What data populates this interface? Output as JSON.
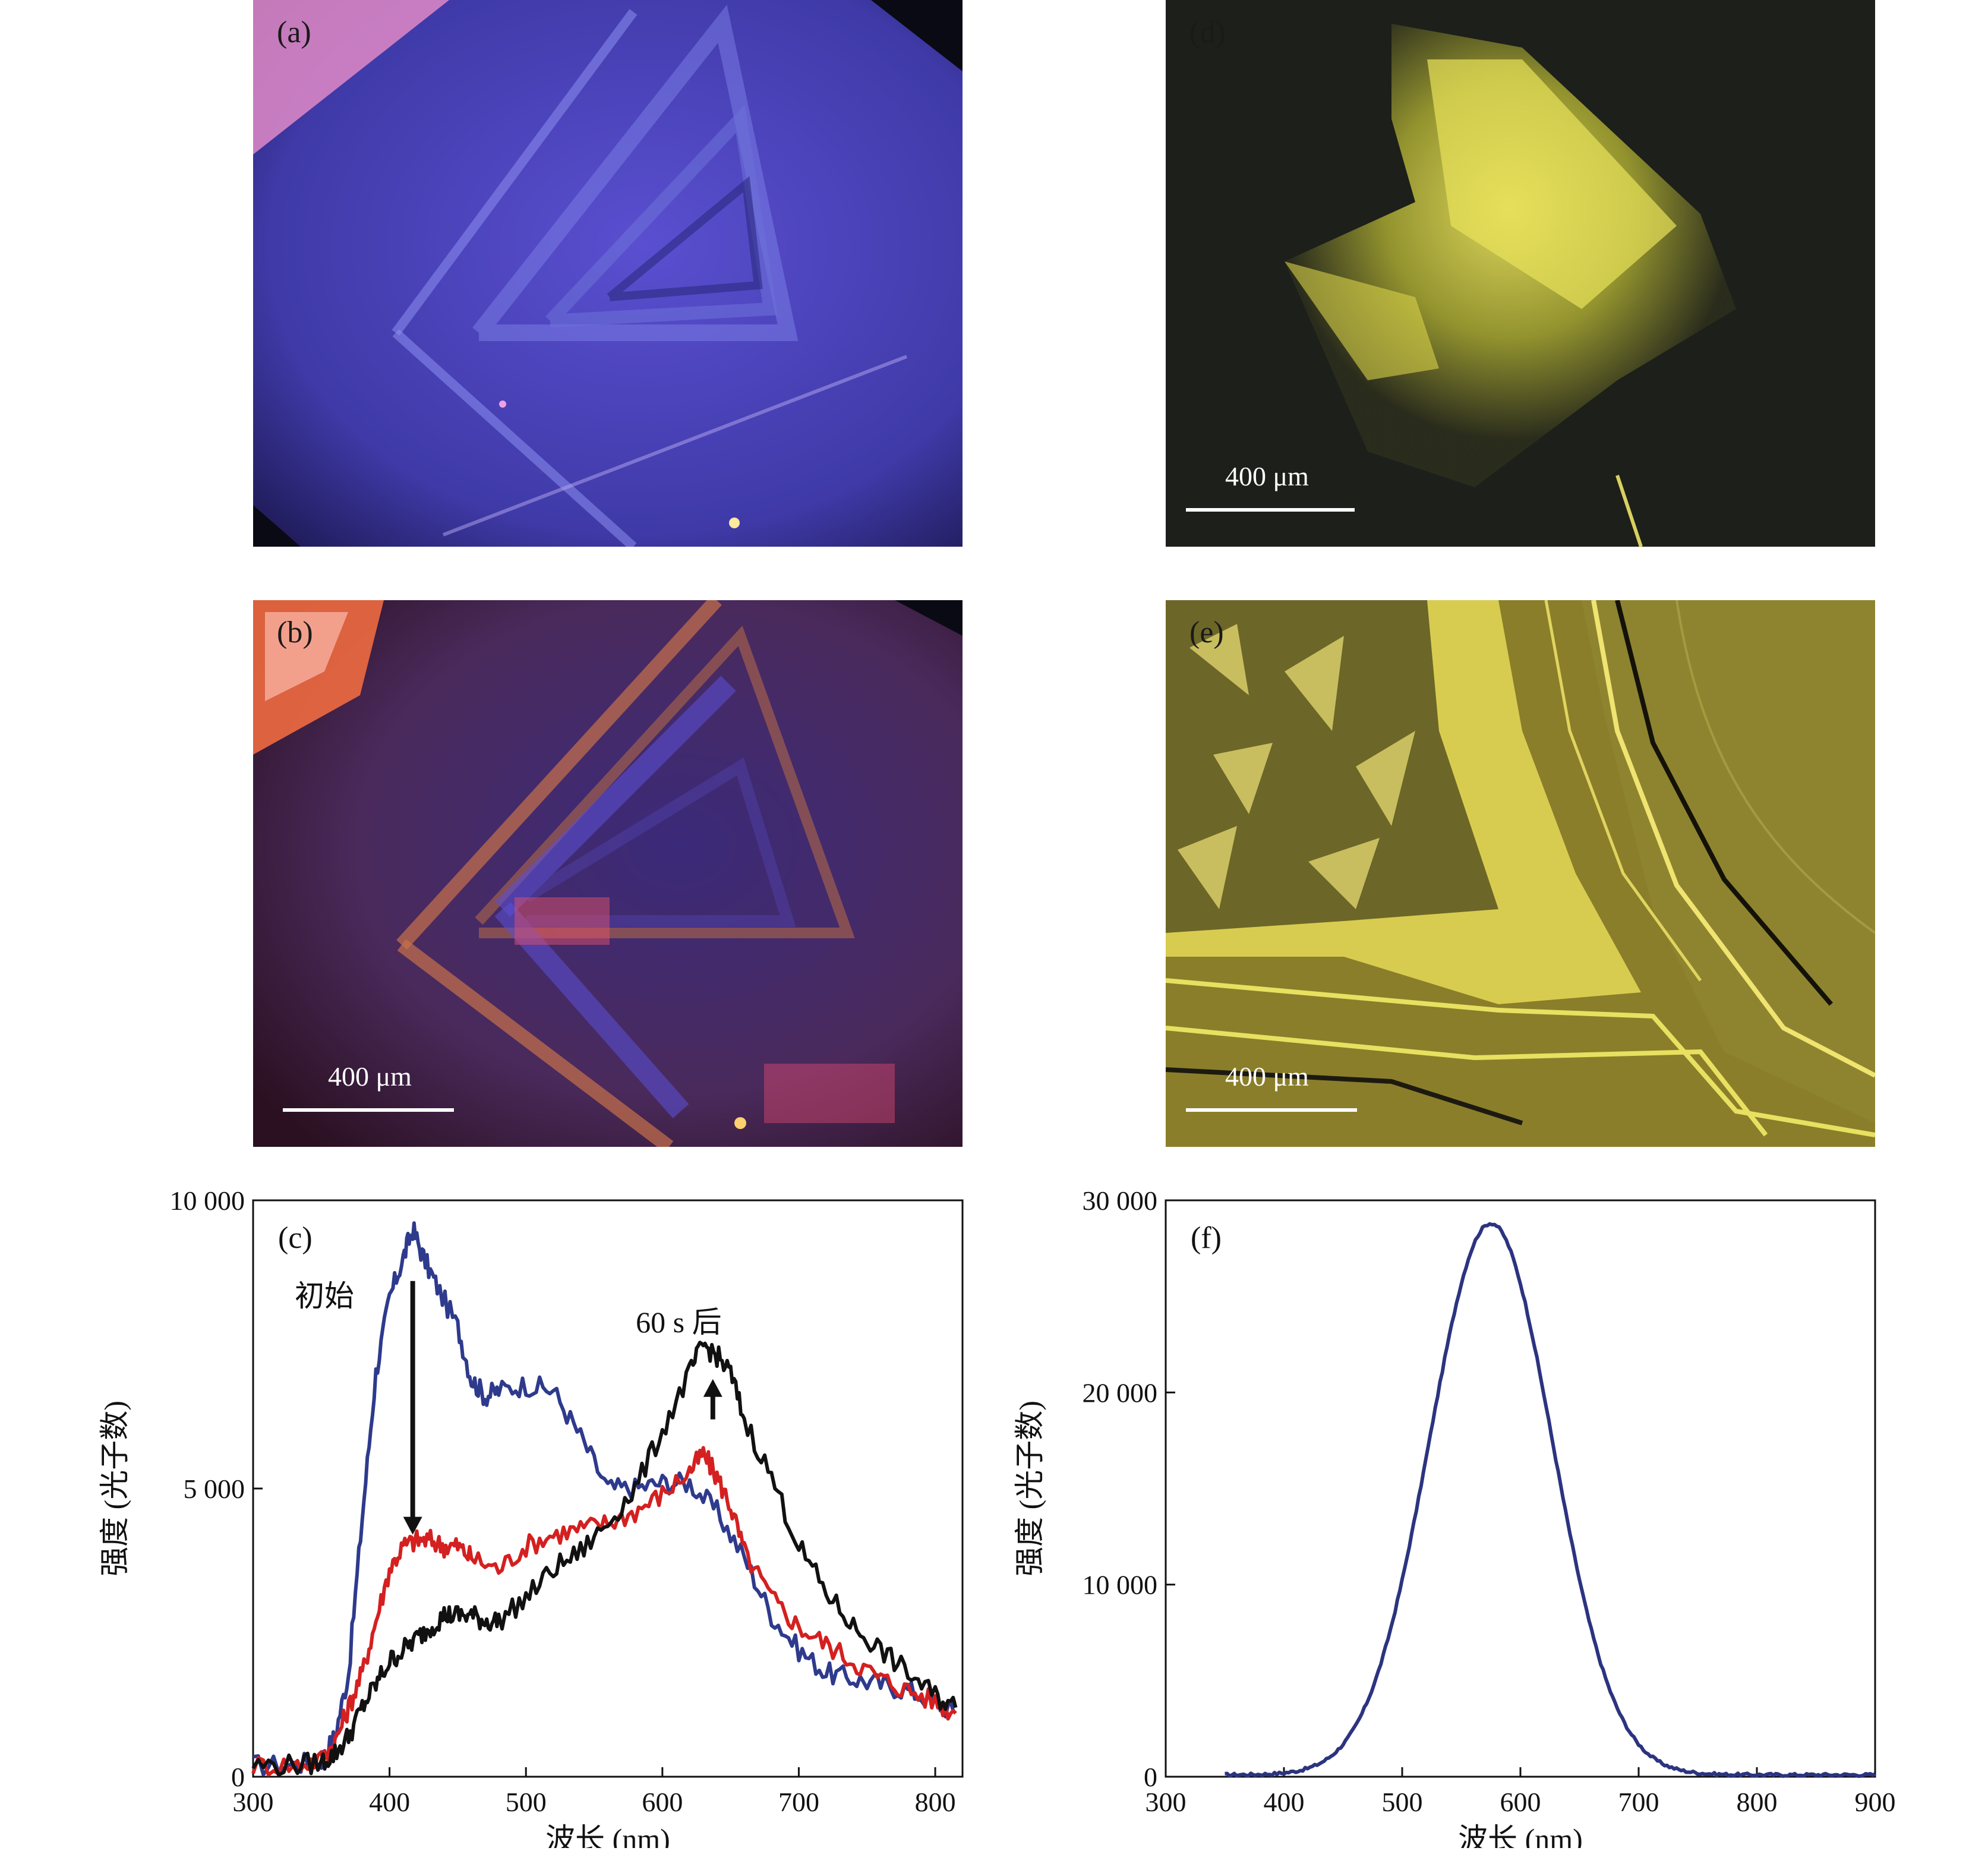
{
  "panels": {
    "a": {
      "label": "(a)"
    },
    "b": {
      "label": "(b)",
      "scale_bar": "400 μm"
    },
    "d": {
      "label": "(d)",
      "scale_bar": "400 μm"
    },
    "e": {
      "label": "(e)",
      "scale_bar": "400 μm"
    }
  },
  "colors": {
    "blue_series": "#2e3a8c",
    "red_series": "#d42020",
    "black_series": "#111111",
    "f_series": "#2c3480"
  },
  "chart_data": [
    {
      "type": "line",
      "panel_label": "(c)",
      "xlabel": "波长 (nm)",
      "ylabel": "强度 (光子数)",
      "xlim": [
        300,
        820
      ],
      "ylim": [
        0,
        10000
      ],
      "x_ticks": [
        300,
        400,
        500,
        600,
        700,
        800
      ],
      "x_tick_labels": [
        "300",
        "400",
        "500",
        "600",
        "700",
        "800"
      ],
      "y_ticks": [
        0,
        5000,
        10000
      ],
      "y_tick_labels": [
        "0",
        "5 000",
        "10 000"
      ],
      "annotations": {
        "initial": "初始",
        "after": "60 s 后"
      },
      "arrows": [
        {
          "x": 417,
          "y_from": 8600,
          "y_to": 4200,
          "direction": "down"
        },
        {
          "x": 637,
          "y_from": 6200,
          "y_to": 6900,
          "direction": "up"
        }
      ],
      "grid": false,
      "series": [
        {
          "color": "blue",
          "x": [
            300,
            330,
            350,
            360,
            370,
            380,
            390,
            400,
            410,
            417,
            425,
            435,
            450,
            460,
            470,
            480,
            500,
            520,
            540,
            560,
            580,
            600,
            620,
            640,
            660,
            680,
            700,
            720,
            740,
            760,
            780,
            800,
            815
          ],
          "y": [
            200,
            200,
            300,
            700,
            1800,
            4500,
            7000,
            8300,
            9000,
            9500,
            9000,
            8500,
            7800,
            6900,
            6600,
            6700,
            6800,
            6700,
            5900,
            5000,
            5000,
            5100,
            5100,
            4600,
            3800,
            2800,
            2200,
            1800,
            1700,
            1600,
            1500,
            1300,
            1100
          ]
        },
        {
          "color": "red",
          "x": [
            300,
            330,
            350,
            360,
            370,
            380,
            390,
            400,
            410,
            420,
            430,
            440,
            450,
            460,
            480,
            500,
            520,
            540,
            560,
            580,
            600,
            620,
            630,
            640,
            650,
            660,
            680,
            700,
            720,
            740,
            760,
            780,
            800,
            815
          ],
          "y": [
            200,
            200,
            300,
            600,
            1200,
            1800,
            2700,
            3600,
            4000,
            4100,
            4100,
            4000,
            4000,
            3800,
            3600,
            4000,
            4200,
            4300,
            4400,
            4600,
            4900,
            5300,
            5600,
            5200,
            4700,
            3900,
            3100,
            2600,
            2300,
            2000,
            1700,
            1500,
            1300,
            1100
          ]
        },
        {
          "color": "black",
          "x": [
            300,
            330,
            350,
            360,
            370,
            380,
            390,
            400,
            410,
            420,
            430,
            440,
            450,
            460,
            470,
            480,
            500,
            520,
            540,
            560,
            580,
            600,
            620,
            630,
            640,
            650,
            660,
            680,
            700,
            720,
            740,
            760,
            780,
            800,
            815
          ],
          "y": [
            200,
            200,
            250,
            400,
            700,
            1200,
            1600,
            2000,
            2200,
            2400,
            2600,
            2800,
            2800,
            2800,
            2700,
            2700,
            3100,
            3600,
            3900,
            4400,
            5000,
            6000,
            7000,
            7500,
            7300,
            7000,
            6200,
            5200,
            4000,
            3200,
            2600,
            2200,
            1800,
            1400,
            1200
          ]
        }
      ]
    },
    {
      "type": "line",
      "panel_label": "(f)",
      "xlabel": "波长 (nm)",
      "ylabel": "强度 (光子数)",
      "xlim": [
        300,
        900
      ],
      "ylim": [
        0,
        30000
      ],
      "x_ticks": [
        300,
        400,
        500,
        600,
        700,
        800,
        900
      ],
      "x_tick_labels": [
        "300",
        "400",
        "500",
        "600",
        "700",
        "800",
        "900"
      ],
      "y_ticks": [
        0,
        10000,
        20000,
        30000
      ],
      "y_tick_labels": [
        "0",
        "10 000",
        "20 000",
        "30 000"
      ],
      "grid": false,
      "series": [
        {
          "color": "dark-blue",
          "gaussian": {
            "center": 575,
            "amplitude": 28700,
            "sigma": 52,
            "baseline": 100,
            "x_start": 350,
            "x_end": 900
          }
        }
      ]
    }
  ]
}
